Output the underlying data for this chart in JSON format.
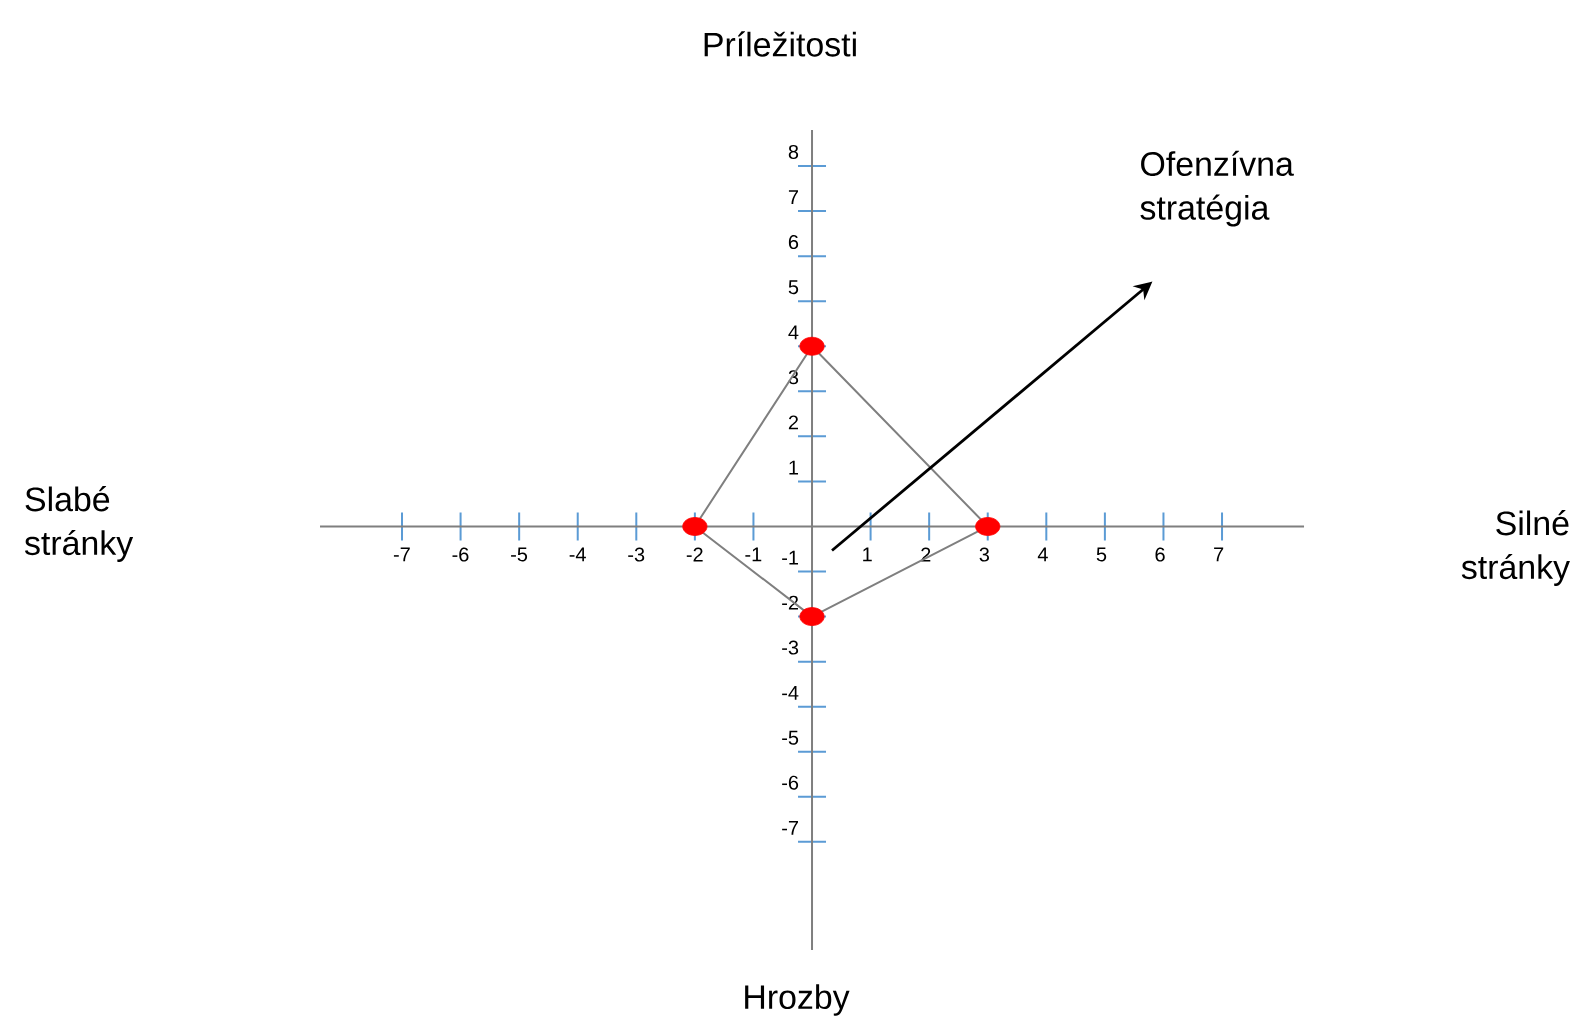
{
  "chart_data": {
    "type": "line",
    "xlim": [
      -8.4,
      8.4
    ],
    "ylim": [
      -9.4,
      8.8
    ],
    "xticks": [
      -7,
      -6,
      -5,
      -4,
      -3,
      -2,
      -1,
      1,
      2,
      3,
      4,
      5,
      6,
      7
    ],
    "yticks": [
      -7,
      -6,
      -5,
      -4,
      -3,
      -2,
      -1,
      1,
      2,
      3,
      4,
      5,
      6,
      7,
      8
    ],
    "series": [
      {
        "color": "#7f7f7f",
        "x": [
          -2,
          0,
          3
        ],
        "values": [
          0,
          4,
          0
        ]
      },
      {
        "color": "#7f7f7f",
        "x": [
          -2,
          0,
          3
        ],
        "values": [
          0,
          -2,
          0
        ]
      },
      {
        "type": "scatter",
        "color": "#ff0000",
        "x": [
          0,
          3,
          0,
          -2
        ],
        "values": [
          4,
          0,
          -2,
          0
        ]
      }
    ],
    "annotations": [
      "Príležitosti",
      "Slabé stránky",
      "Silné stránky",
      "Hrozby",
      "Ofenzívna stratégia"
    ]
  }
}
